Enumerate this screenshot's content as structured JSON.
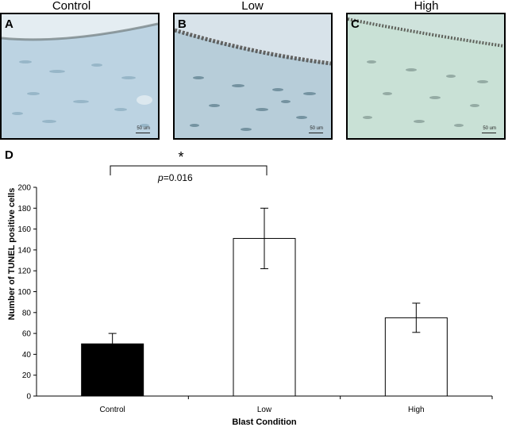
{
  "panels": [
    {
      "title": "Control",
      "letter": "A",
      "scale": "50 um",
      "tint": "#bcd3e2"
    },
    {
      "title": "Low",
      "letter": "B",
      "scale": "50 um",
      "tint": "#b7cdd9"
    },
    {
      "title": "High",
      "letter": "C",
      "scale": "50 um",
      "tint": "#c9e1d6"
    }
  ],
  "chart_letter": "D",
  "significance": {
    "star": "*",
    "p_symbol": "p",
    "p_value": "=0.016"
  },
  "chart_data": {
    "type": "bar",
    "categories": [
      "Control",
      "Low",
      "High"
    ],
    "values": [
      50,
      151,
      75
    ],
    "errors": [
      10,
      29,
      14
    ],
    "colors": [
      "#000000",
      "#ffffff",
      "#ffffff"
    ],
    "xlabel": "Blast Condition",
    "ylabel": "Number of TUNEL positive cells",
    "ylim": [
      0,
      200
    ],
    "yticks": [
      0,
      20,
      40,
      60,
      80,
      100,
      120,
      140,
      160,
      180,
      200
    ],
    "grid": false
  }
}
